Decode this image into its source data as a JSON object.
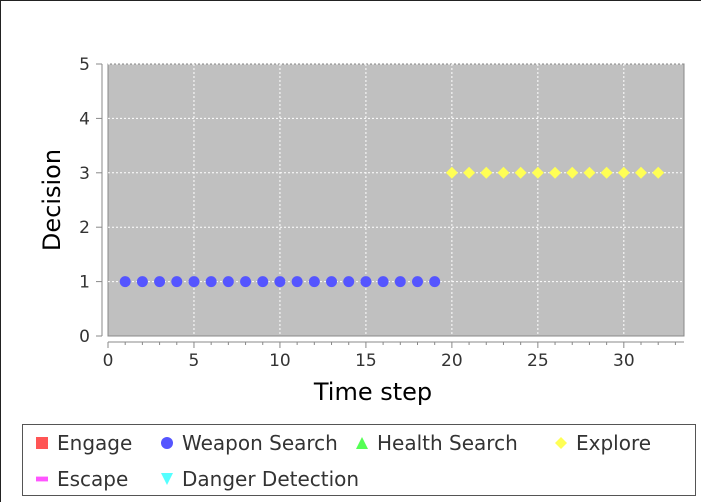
{
  "chart_data": {
    "type": "scatter",
    "title": "",
    "xlabel": "Time step",
    "ylabel": "Decision",
    "xlim": [
      0,
      33.5
    ],
    "ylim": [
      0,
      5
    ],
    "xticks": [
      0,
      5,
      10,
      15,
      20,
      25,
      30
    ],
    "yticks": [
      0,
      1,
      2,
      3,
      4,
      5
    ],
    "grid": true,
    "background": "#c0c0c0",
    "legend_position": "bottom",
    "series": [
      {
        "name": "Engage",
        "marker": "square",
        "color": "#ff5555",
        "x": [],
        "y": []
      },
      {
        "name": "Weapon Search",
        "marker": "circle",
        "color": "#5555ff",
        "x": [
          1,
          2,
          3,
          4,
          5,
          6,
          7,
          8,
          9,
          10,
          11,
          12,
          13,
          14,
          15,
          16,
          17,
          18,
          19
        ],
        "y": [
          1,
          1,
          1,
          1,
          1,
          1,
          1,
          1,
          1,
          1,
          1,
          1,
          1,
          1,
          1,
          1,
          1,
          1,
          1
        ]
      },
      {
        "name": "Health Search",
        "marker": "triangle-up",
        "color": "#55ff55",
        "x": [],
        "y": []
      },
      {
        "name": "Explore",
        "marker": "diamond",
        "color": "#ffff55",
        "x": [
          20,
          21,
          22,
          23,
          24,
          25,
          26,
          27,
          28,
          29,
          30,
          31,
          32
        ],
        "y": [
          3,
          3,
          3,
          3,
          3,
          3,
          3,
          3,
          3,
          3,
          3,
          3,
          3
        ]
      },
      {
        "name": "Escape",
        "marker": "bar",
        "color": "#ff55ff",
        "x": [],
        "y": []
      },
      {
        "name": "Danger Detection",
        "marker": "triangle-down",
        "color": "#55ffff",
        "x": [],
        "y": []
      }
    ]
  }
}
